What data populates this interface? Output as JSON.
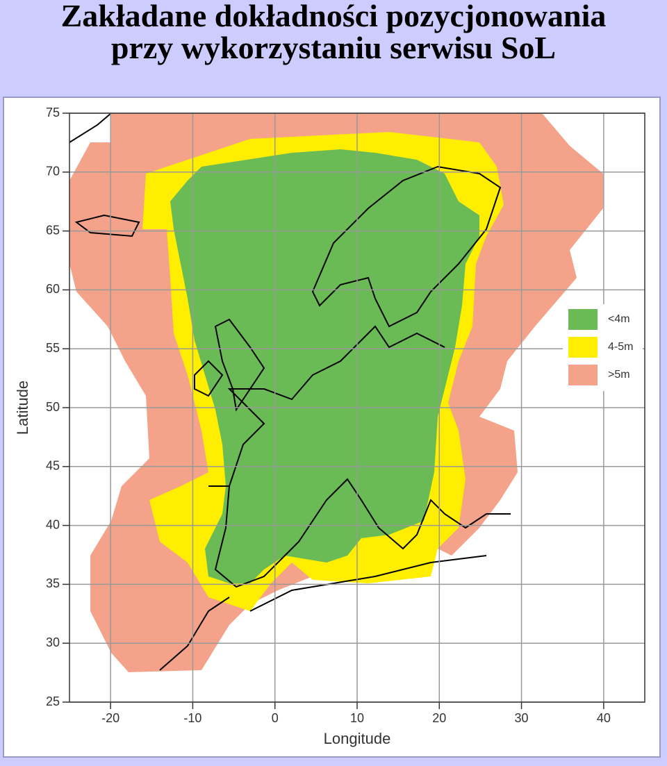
{
  "header": {
    "title_lines": [
      "Zakładane dokładności pozycjonowania",
      "przy wykorzystaniu serwisu SoL"
    ]
  },
  "chart_data": {
    "type": "map",
    "xlabel": "Longitude",
    "ylabel": "Latitude",
    "xlim": [
      -25,
      45
    ],
    "ylim": [
      25,
      75
    ],
    "xticks": [
      -20,
      -10,
      0,
      10,
      20,
      30,
      40
    ],
    "yticks": [
      25,
      30,
      35,
      40,
      45,
      50,
      55,
      60,
      65,
      70,
      75
    ],
    "grid": true,
    "legend": {
      "position": "right",
      "entries": [
        {
          "name": "<4m",
          "color": "#6abb55"
        },
        {
          "name": "4-5m",
          "color": "#ffee00"
        },
        {
          "name": ">5m",
          "color": "#f4a38a"
        }
      ]
    }
  }
}
